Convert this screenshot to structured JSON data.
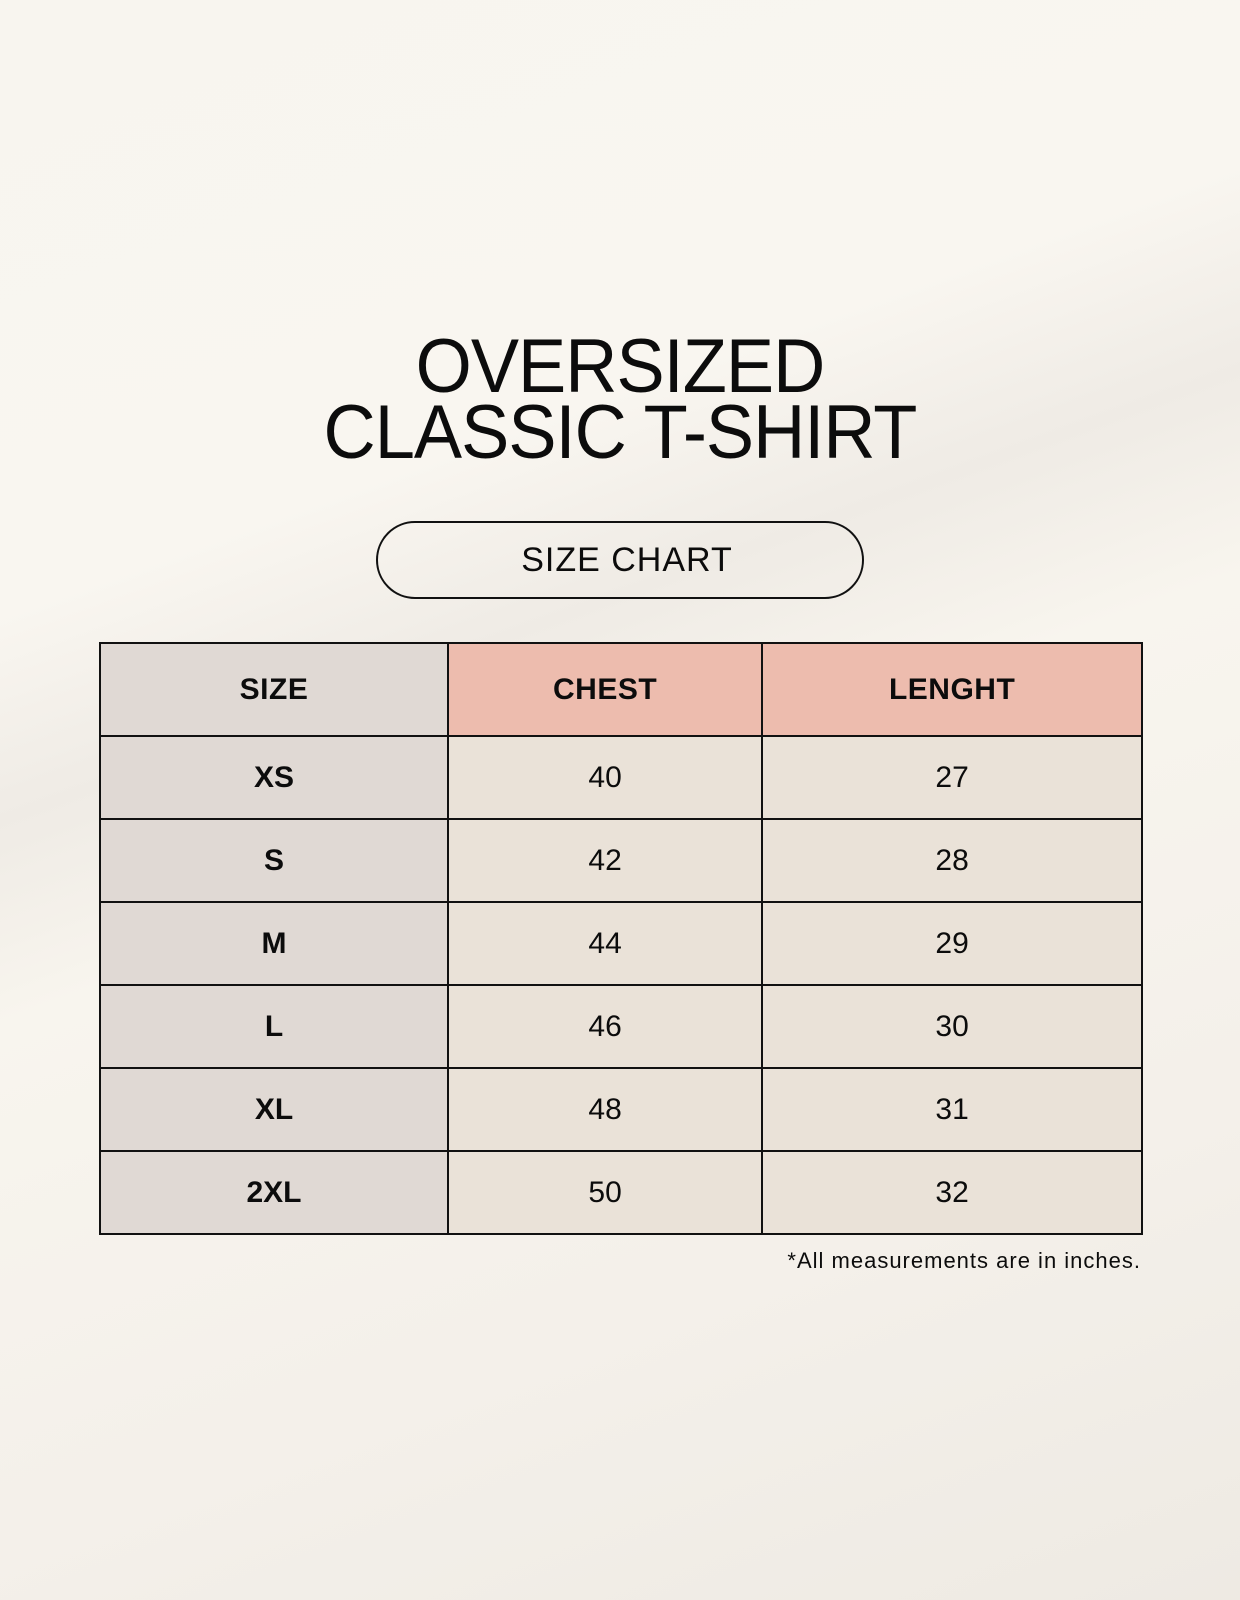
{
  "title": {
    "line1": "OVERSIZED",
    "line2": "CLASSIC T-SHIRT"
  },
  "subtitle": "SIZE CHART",
  "colors": {
    "size_column": "#e0d9d4",
    "header_accent": "#edbcae",
    "value_cells": "#eae2d8",
    "border": "#111111"
  },
  "table": {
    "headers": [
      "SIZE",
      "CHEST",
      "LENGHT"
    ],
    "rows": [
      [
        "XS",
        "40",
        "27"
      ],
      [
        "S",
        "42",
        "28"
      ],
      [
        "M",
        "44",
        "29"
      ],
      [
        "L",
        "46",
        "30"
      ],
      [
        "XL",
        "48",
        "31"
      ],
      [
        "2XL",
        "50",
        "32"
      ]
    ]
  },
  "footnote": "*All measurements are in inches."
}
